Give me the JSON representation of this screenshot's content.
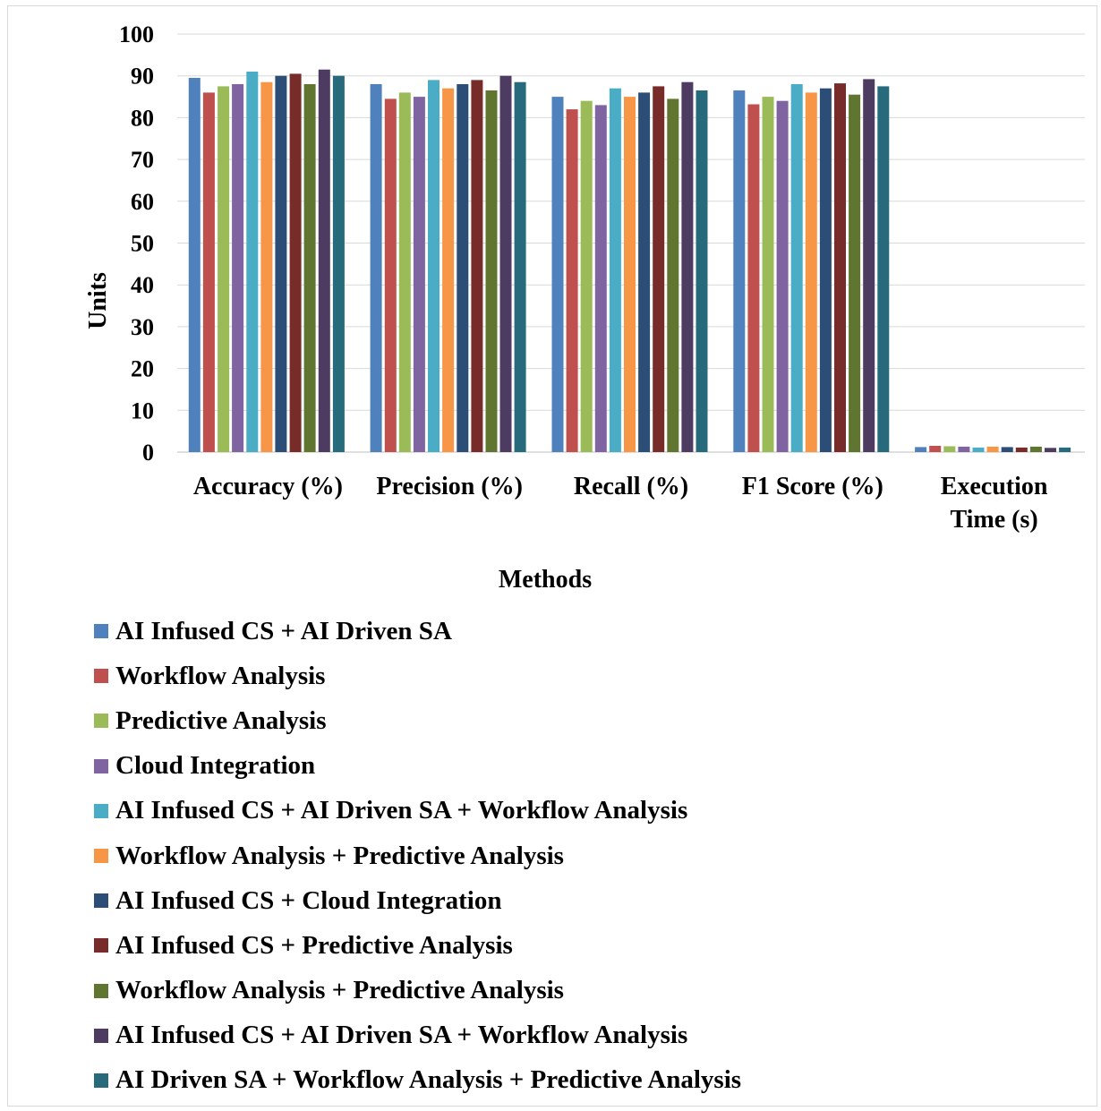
{
  "chart_data": {
    "type": "bar",
    "title": "",
    "xlabel": "Methods",
    "ylabel": "Units",
    "ylim": [
      0,
      100
    ],
    "yticks": [
      0,
      10,
      20,
      30,
      40,
      50,
      60,
      70,
      80,
      90,
      100
    ],
    "grid": true,
    "legend_position": "bottom",
    "categories": [
      "Accuracy (%)",
      "Precision (%)",
      "Recall (%)",
      "F1 Score (%)",
      "Execution Time (s)"
    ],
    "series": [
      {
        "name": "AI Infused CS + AI Driven SA",
        "color": "#4f81bd",
        "values": [
          89.5,
          88,
          85,
          86.5,
          1.2
        ]
      },
      {
        "name": "Workflow Analysis",
        "color": "#c0504d",
        "values": [
          86,
          84.5,
          82,
          83.2,
          1.5
        ]
      },
      {
        "name": "Predictive Analysis",
        "color": "#9bbb59",
        "values": [
          87.5,
          86,
          84,
          85,
          1.4
        ]
      },
      {
        "name": "Cloud Integration",
        "color": "#8064a2",
        "values": [
          88,
          85,
          83,
          84,
          1.3
        ]
      },
      {
        "name": "AI Infused CS + AI Driven SA + Workflow Analysis",
        "color": "#4bacc6",
        "values": [
          91,
          89,
          87,
          88,
          1.1
        ]
      },
      {
        "name": "Workflow Analysis + Predictive Analysis",
        "color": "#f79646",
        "values": [
          88.5,
          87,
          85,
          86,
          1.3
        ]
      },
      {
        "name": "AI Infused CS + Cloud Integration",
        "color": "#2c4d75",
        "values": [
          90,
          88,
          86,
          87,
          1.2
        ]
      },
      {
        "name": "AI Infused CS + Predictive Analysis",
        "color": "#772c2a",
        "values": [
          90.5,
          89,
          87.5,
          88.2,
          1.1
        ]
      },
      {
        "name": "Workflow Analysis + Predictive Analysis",
        "color": "#5f7530",
        "values": [
          88,
          86.5,
          84.5,
          85.5,
          1.3
        ]
      },
      {
        "name": "AI Infused CS + AI Driven SA + Workflow Analysis",
        "color": "#4d3b62",
        "values": [
          91.5,
          90,
          88.5,
          89.2,
          1.0
        ]
      },
      {
        "name": "AI Driven SA + Workflow Analysis + Predictive Analysis",
        "color": "#276a7c",
        "values": [
          90,
          88.5,
          86.5,
          87.5,
          1.1
        ]
      }
    ]
  }
}
